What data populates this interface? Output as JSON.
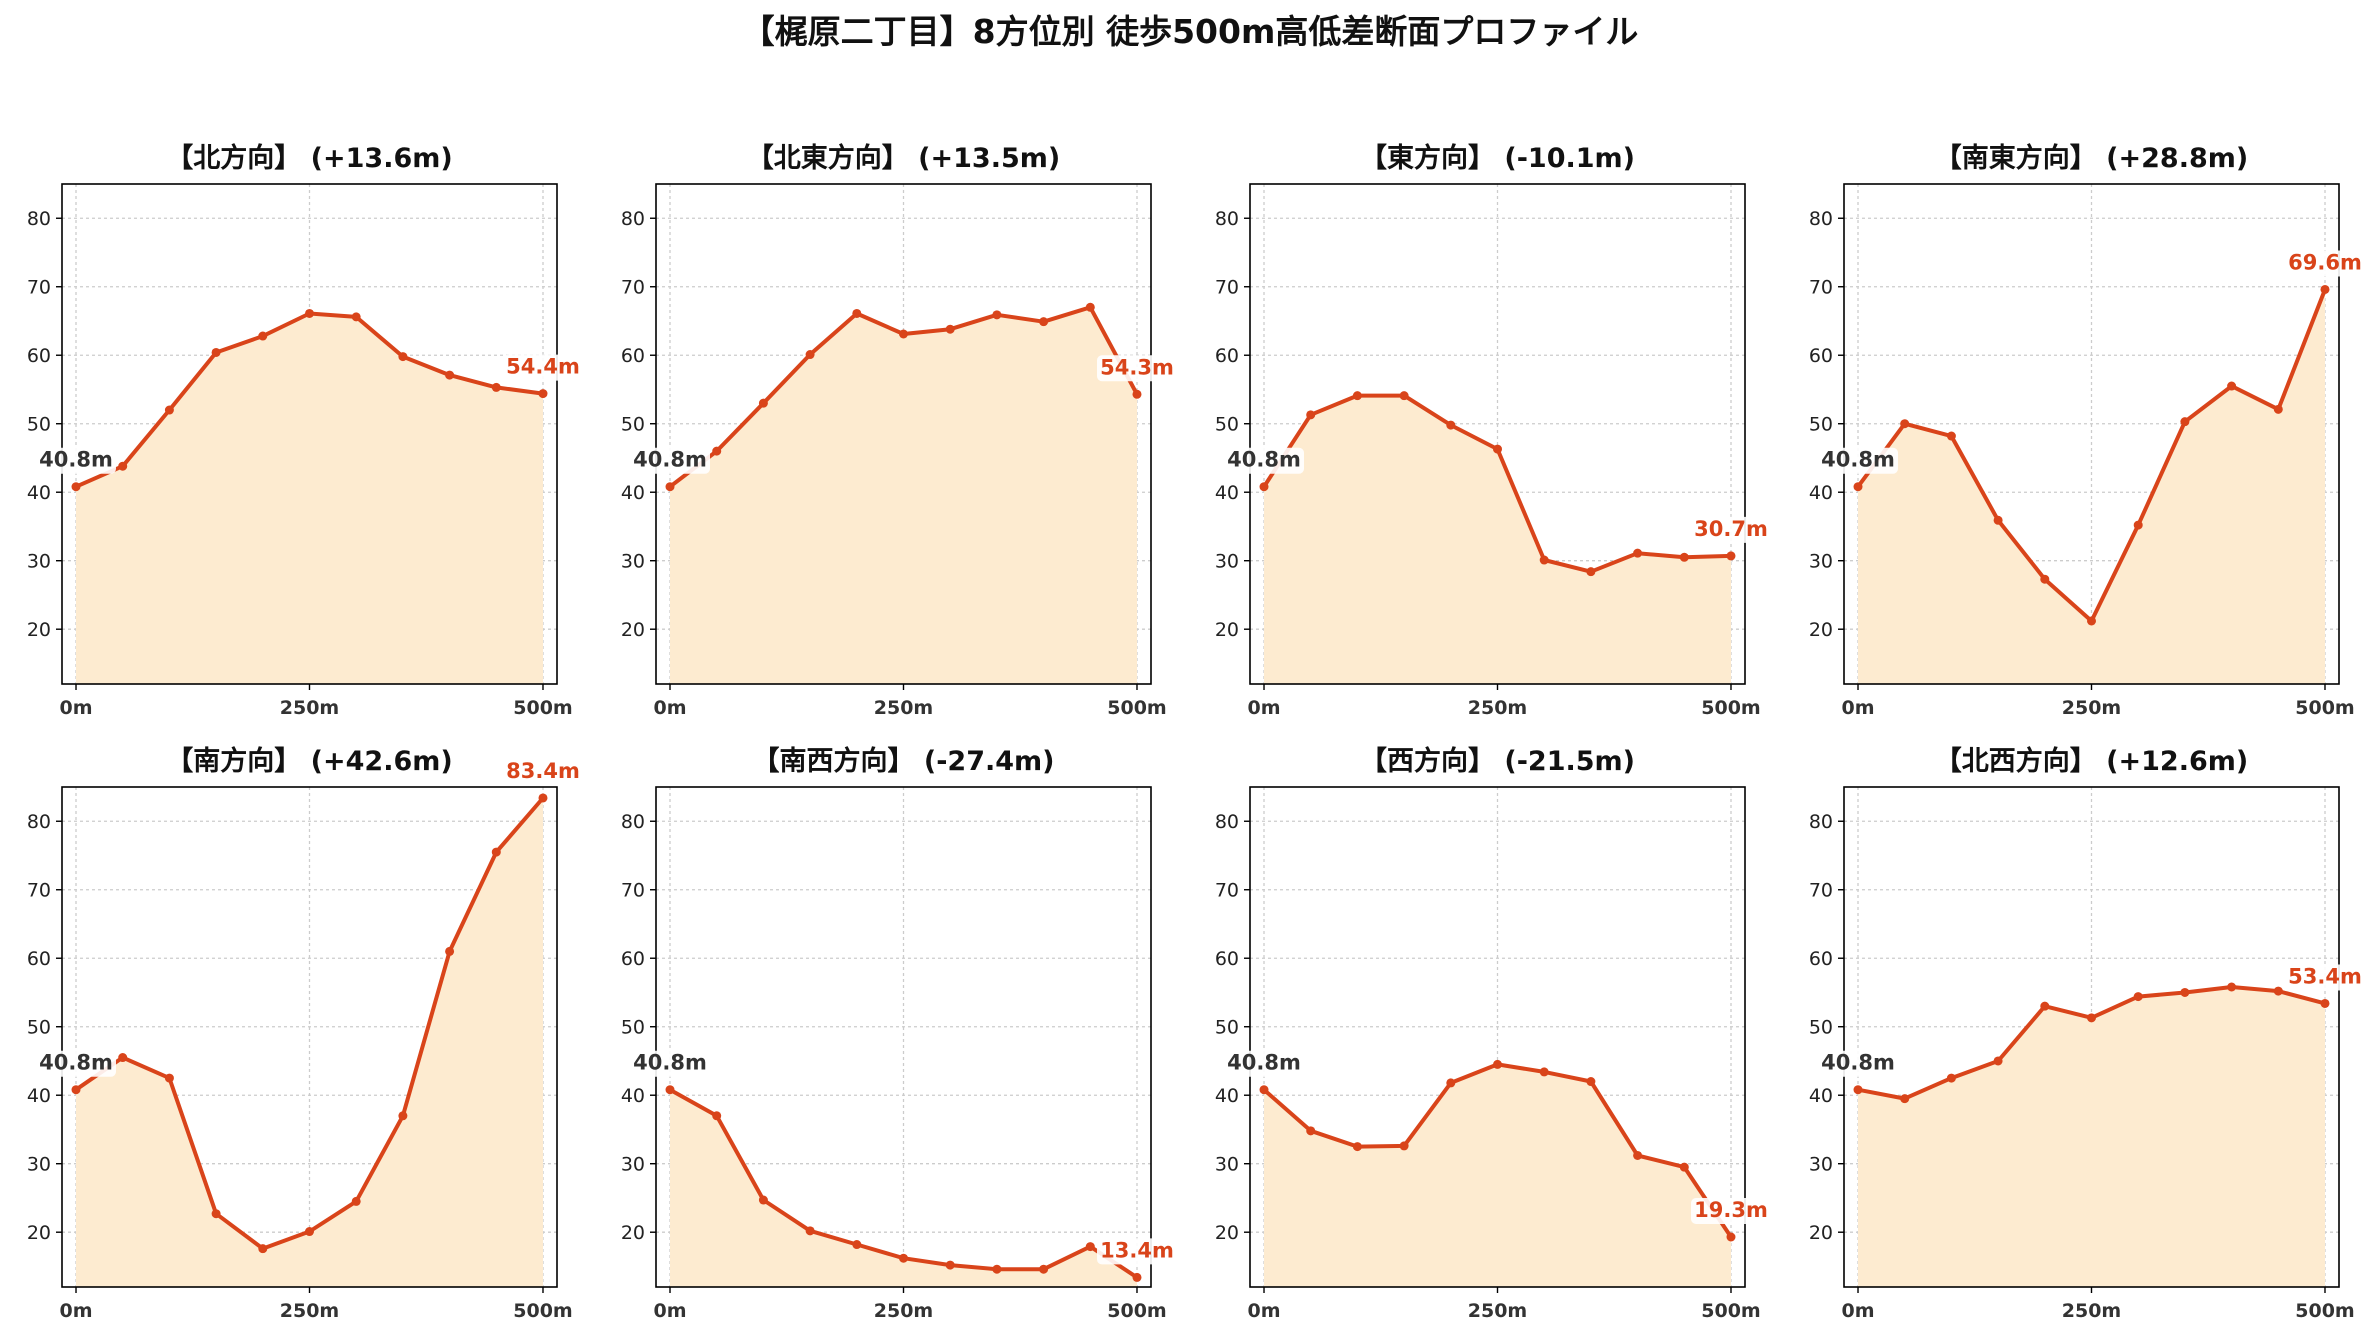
{
  "title": "【梶原二丁目】8方位別 徒歩500m高低差断面プロファイル",
  "colors": {
    "line": "#d9441a",
    "fill": "#fdebd0",
    "end_label": "#d9441a",
    "start_label": "#333333",
    "grid": "#cccccc"
  },
  "chart_data": [
    {
      "type": "area",
      "title": "【北方向】 (+13.6m)",
      "x": [
        0,
        50,
        100,
        150,
        200,
        250,
        300,
        350,
        400,
        450,
        500
      ],
      "y": [
        40.8,
        43.8,
        52.0,
        60.4,
        62.8,
        66.1,
        65.6,
        59.8,
        57.1,
        55.3,
        54.4
      ],
      "start_label": "40.8m",
      "end_label": "54.4m",
      "xticks": [
        "0m",
        "250m",
        "500m"
      ],
      "yticks": [
        20,
        30,
        40,
        50,
        60,
        70,
        80
      ],
      "ylim": [
        12,
        85
      ],
      "xlim": [
        -15,
        515
      ],
      "grid": true
    },
    {
      "type": "area",
      "title": "【北東方向】 (+13.5m)",
      "x": [
        0,
        50,
        100,
        150,
        200,
        250,
        300,
        350,
        400,
        450,
        500
      ],
      "y": [
        40.8,
        46.0,
        53.0,
        60.1,
        66.1,
        63.1,
        63.8,
        65.9,
        64.9,
        67.0,
        54.3
      ],
      "start_label": "40.8m",
      "end_label": "54.3m",
      "xticks": [
        "0m",
        "250m",
        "500m"
      ],
      "yticks": [
        20,
        30,
        40,
        50,
        60,
        70,
        80
      ],
      "ylim": [
        12,
        85
      ],
      "xlim": [
        -15,
        515
      ],
      "grid": true
    },
    {
      "type": "area",
      "title": "【東方向】 (-10.1m)",
      "x": [
        0,
        50,
        100,
        150,
        200,
        250,
        300,
        350,
        400,
        450,
        500
      ],
      "y": [
        40.8,
        51.3,
        54.1,
        54.1,
        49.8,
        46.3,
        30.1,
        28.4,
        31.1,
        30.5,
        30.7
      ],
      "start_label": "40.8m",
      "end_label": "30.7m",
      "xticks": [
        "0m",
        "250m",
        "500m"
      ],
      "yticks": [
        20,
        30,
        40,
        50,
        60,
        70,
        80
      ],
      "ylim": [
        12,
        85
      ],
      "xlim": [
        -15,
        515
      ],
      "grid": true
    },
    {
      "type": "area",
      "title": "【南東方向】 (+28.8m)",
      "x": [
        0,
        50,
        100,
        150,
        200,
        250,
        300,
        350,
        400,
        450,
        500
      ],
      "y": [
        40.8,
        50.0,
        48.2,
        35.9,
        27.3,
        21.2,
        35.2,
        50.3,
        55.5,
        52.1,
        69.6
      ],
      "start_label": "40.8m",
      "end_label": "69.6m",
      "xticks": [
        "0m",
        "250m",
        "500m"
      ],
      "yticks": [
        20,
        30,
        40,
        50,
        60,
        70,
        80
      ],
      "ylim": [
        12,
        85
      ],
      "xlim": [
        -15,
        515
      ],
      "grid": true
    },
    {
      "type": "area",
      "title": "【南方向】 (+42.6m)",
      "x": [
        0,
        50,
        100,
        150,
        200,
        250,
        300,
        350,
        400,
        450,
        500
      ],
      "y": [
        40.8,
        45.5,
        42.5,
        22.7,
        17.6,
        20.1,
        24.5,
        37.0,
        61.0,
        75.5,
        83.4
      ],
      "start_label": "40.8m",
      "end_label": "83.4m",
      "xticks": [
        "0m",
        "250m",
        "500m"
      ],
      "yticks": [
        20,
        30,
        40,
        50,
        60,
        70,
        80
      ],
      "ylim": [
        12,
        85
      ],
      "xlim": [
        -15,
        515
      ],
      "grid": true
    },
    {
      "type": "area",
      "title": "【南西方向】 (-27.4m)",
      "x": [
        0,
        50,
        100,
        150,
        200,
        250,
        300,
        350,
        400,
        450,
        500
      ],
      "y": [
        40.8,
        37.0,
        24.7,
        20.2,
        18.2,
        16.2,
        15.2,
        14.6,
        14.6,
        17.9,
        13.4
      ],
      "start_label": "40.8m",
      "end_label": "13.4m",
      "xticks": [
        "0m",
        "250m",
        "500m"
      ],
      "yticks": [
        20,
        30,
        40,
        50,
        60,
        70,
        80
      ],
      "ylim": [
        12,
        85
      ],
      "xlim": [
        -15,
        515
      ],
      "grid": true
    },
    {
      "type": "area",
      "title": "【西方向】 (-21.5m)",
      "x": [
        0,
        50,
        100,
        150,
        200,
        250,
        300,
        350,
        400,
        450,
        500
      ],
      "y": [
        40.8,
        34.8,
        32.5,
        32.6,
        41.8,
        44.5,
        43.4,
        42.0,
        31.2,
        29.5,
        19.3
      ],
      "start_label": "40.8m",
      "end_label": "19.3m",
      "xticks": [
        "0m",
        "250m",
        "500m"
      ],
      "yticks": [
        20,
        30,
        40,
        50,
        60,
        70,
        80
      ],
      "ylim": [
        12,
        85
      ],
      "xlim": [
        -15,
        515
      ],
      "grid": true
    },
    {
      "type": "area",
      "title": "【北西方向】 (+12.6m)",
      "x": [
        0,
        50,
        100,
        150,
        200,
        250,
        300,
        350,
        400,
        450,
        500
      ],
      "y": [
        40.8,
        39.5,
        42.5,
        45.0,
        53.0,
        51.3,
        54.4,
        55.0,
        55.8,
        55.2,
        53.4
      ],
      "start_label": "40.8m",
      "end_label": "53.4m",
      "xticks": [
        "0m",
        "250m",
        "500m"
      ],
      "yticks": [
        20,
        30,
        40,
        50,
        60,
        70,
        80
      ],
      "ylim": [
        12,
        85
      ],
      "xlim": [
        -15,
        515
      ],
      "grid": true
    }
  ]
}
